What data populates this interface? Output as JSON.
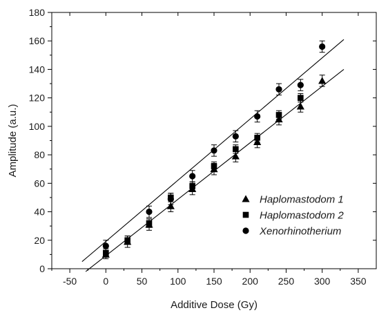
{
  "chart_data": {
    "type": "scatter",
    "title": "",
    "xlabel": "Additive Dose (Gy)",
    "ylabel": "Amplitude (a.u.)",
    "xlim": [
      -75,
      375
    ],
    "ylim": [
      0,
      180
    ],
    "xticks": [
      -50,
      0,
      50,
      100,
      150,
      200,
      250,
      300,
      350
    ],
    "yticks": [
      0,
      20,
      40,
      60,
      80,
      100,
      120,
      140,
      160,
      180
    ],
    "legend_position": "lower-right",
    "series": [
      {
        "name": "Haplomastodom 1",
        "marker": "triangle",
        "color": "#000000",
        "x": [
          0,
          30,
          60,
          90,
          120,
          150,
          180,
          210,
          240,
          270,
          300
        ],
        "y": [
          10,
          19,
          31,
          44,
          56,
          70,
          79,
          89,
          105,
          114,
          132
        ],
        "err": [
          3,
          4,
          4,
          4,
          4,
          4,
          4,
          4,
          4,
          4,
          4
        ],
        "fit": {
          "x": [
            -28,
            330
          ],
          "y": [
            -2,
            140
          ]
        }
      },
      {
        "name": "Haplomastodom 2",
        "marker": "square",
        "color": "#000000",
        "x": [
          0,
          30,
          60,
          90,
          120,
          150,
          180,
          210,
          240,
          270
        ],
        "y": [
          11,
          20,
          32,
          50,
          58,
          72,
          84,
          92,
          108,
          120
        ],
        "err": [
          3,
          3,
          3,
          3,
          3,
          3,
          3,
          3,
          3,
          3
        ],
        "fit": null
      },
      {
        "name": "Xenorhinotherium",
        "marker": "circle",
        "color": "#000000",
        "x": [
          0,
          60,
          90,
          120,
          150,
          180,
          210,
          240,
          270,
          300
        ],
        "y": [
          16,
          40,
          49,
          65,
          83,
          93,
          107,
          126,
          129,
          156
        ],
        "err": [
          4,
          4,
          4,
          4,
          4,
          4,
          4,
          4,
          4,
          4
        ],
        "fit": {
          "x": [
            -33,
            330
          ],
          "y": [
            5,
            161
          ]
        }
      }
    ]
  }
}
